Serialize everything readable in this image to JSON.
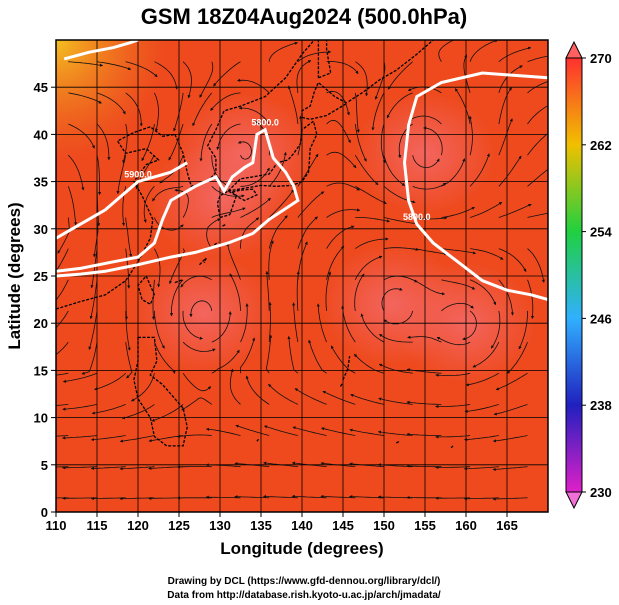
{
  "figure": {
    "title": "GSM 18Z04Aug2024 (500.0hPa)",
    "xlabel": "Longitude (degrees)",
    "ylabel": "Latitude  (degrees)",
    "credit_line1": "Drawing by DCL (https://www.gfd-dennou.org/library/dcl/)",
    "credit_line2": "Data from http://database.rish.kyoto-u.ac.jp/arch/jmadata/"
  },
  "chart_data": {
    "type": "heatmap",
    "title": "GSM 18Z04Aug2024 (500.0hPa)",
    "xlabel": "Longitude (degrees)",
    "ylabel": "Latitude  (degrees)",
    "xlim": [
      110,
      170
    ],
    "ylim": [
      0,
      50
    ],
    "x_ticks": [
      110,
      115,
      120,
      125,
      130,
      135,
      140,
      145,
      150,
      155,
      160,
      165
    ],
    "y_ticks": [
      0,
      5,
      10,
      15,
      20,
      25,
      30,
      35,
      40,
      45
    ],
    "colorbar": {
      "range": [
        230,
        270
      ],
      "ticks": [
        230,
        238,
        246,
        254,
        262,
        270
      ],
      "colors": [
        "#e020c8",
        "#2020c0",
        "#30b0ff",
        "#20d040",
        "#f0c000",
        "#ff3030"
      ]
    },
    "background_color": "#ee4a1e",
    "grid": true,
    "overlay": "wind streamlines",
    "contours": [
      {
        "label": "5800.0",
        "points": [
          [
            110,
            25.5
          ],
          [
            113,
            25.8
          ],
          [
            117,
            26.5
          ],
          [
            120,
            27
          ],
          [
            122,
            28.5
          ],
          [
            123,
            31
          ],
          [
            124,
            33
          ],
          [
            127,
            34.5
          ],
          [
            129.5,
            35.5
          ],
          [
            130.5,
            34
          ],
          [
            131.5,
            35.5
          ],
          [
            133,
            36.5
          ],
          [
            134,
            37
          ],
          [
            134.5,
            40
          ],
          [
            135.5,
            40.5
          ],
          [
            136.5,
            37.5
          ],
          [
            138,
            36
          ],
          [
            139,
            34.5
          ],
          [
            139.5,
            33
          ],
          [
            136,
            31
          ],
          [
            134,
            29.5
          ],
          [
            131,
            28.5
          ],
          [
            127,
            27.5
          ],
          [
            124,
            27
          ],
          [
            120,
            26.2
          ],
          [
            116,
            25.5
          ],
          [
            113,
            25.2
          ],
          [
            110,
            25
          ]
        ]
      },
      {
        "label": "5900.0",
        "points": [
          [
            110,
            29
          ],
          [
            113,
            30.5
          ],
          [
            116,
            32
          ],
          [
            118,
            33.5
          ],
          [
            120,
            35
          ],
          [
            122,
            35.5
          ],
          [
            124,
            36
          ],
          [
            126,
            37
          ]
        ]
      },
      {
        "label": "5800.0",
        "points": [
          [
            170,
            46
          ],
          [
            162,
            46.5
          ],
          [
            157,
            45.5
          ],
          [
            154,
            44
          ],
          [
            153,
            41
          ],
          [
            152.5,
            37
          ],
          [
            153,
            33
          ],
          [
            154,
            30.5
          ],
          [
            156,
            28.5
          ],
          [
            159,
            26.5
          ],
          [
            162,
            24.5
          ],
          [
            165,
            23.5
          ],
          [
            168,
            23
          ],
          [
            170,
            22.5
          ]
        ]
      },
      {
        "label": "",
        "points": [
          [
            111,
            48
          ],
          [
            114,
            48.7
          ],
          [
            117,
            49.2
          ],
          [
            119,
            49.7
          ],
          [
            120,
            50
          ]
        ]
      }
    ],
    "warm_cores": [
      [
        133,
        38
      ],
      [
        130,
        33
      ],
      [
        128,
        21
      ],
      [
        151,
        22
      ],
      [
        160,
        20
      ],
      [
        155,
        38
      ]
    ]
  }
}
